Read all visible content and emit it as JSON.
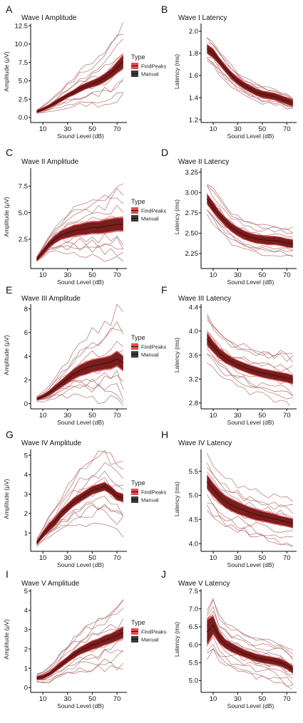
{
  "legend": {
    "title": "Type",
    "entries": [
      {
        "label": "FindPeaks",
        "color": "#f0484e"
      },
      {
        "label": "Manual",
        "color": "#3a3a3a"
      }
    ]
  },
  "colors": {
    "mean_line": "#5c0a0a",
    "manual_band": "#6b1a1a",
    "findpeaks_band": "#f0484e",
    "individual": "#a85a5a"
  },
  "chart_data": [
    {
      "panel": "A",
      "title": "Wave I Amplitude",
      "type": "line",
      "xlabel": "Sound Level (dB)",
      "ylabel": "Amplitude (μV)",
      "xlim": [
        3,
        78
      ],
      "xticks": [
        10,
        30,
        50,
        70
      ],
      "ylim": [
        -0.3,
        12.8
      ],
      "yticks": [
        0.0,
        2.5,
        5.0,
        7.5,
        10.0,
        12.5
      ],
      "ytick_labels": [
        "0.0",
        "2.5",
        "5.0",
        "7.5",
        "10.0",
        "12.5"
      ],
      "legend": true,
      "x": [
        5,
        10,
        15,
        20,
        25,
        30,
        35,
        40,
        45,
        50,
        55,
        60,
        65,
        70,
        75
      ],
      "mean": [
        0.8,
        1.1,
        1.5,
        2.0,
        2.5,
        3.0,
        3.4,
        3.9,
        4.3,
        4.6,
        4.9,
        5.4,
        6.0,
        6.8,
        7.6
      ],
      "band_halfwidth": [
        0.2,
        0.2,
        0.2,
        0.3,
        0.3,
        0.3,
        0.35,
        0.4,
        0.4,
        0.45,
        0.5,
        0.55,
        0.6,
        0.75,
        0.9
      ],
      "individual_spread": [
        0.2,
        0.4,
        0.6,
        0.9,
        1.2,
        1.5,
        1.8,
        2.1,
        2.4,
        2.7,
        3.0,
        3.3,
        3.6,
        4.0,
        4.4
      ]
    },
    {
      "panel": "B",
      "title": "Wave I Latency",
      "type": "line",
      "xlabel": "Sound Level (dB)",
      "ylabel": "Latency (ms)",
      "xlim": [
        3,
        78
      ],
      "xticks": [
        10,
        30,
        50,
        70
      ],
      "ylim": [
        1.2,
        2.07
      ],
      "yticks": [
        1.2,
        1.4,
        1.6,
        1.8,
        2.0
      ],
      "ytick_labels": [
        "1.2",
        "1.4",
        "1.6",
        "1.8",
        "2.0"
      ],
      "legend": false,
      "x": [
        5,
        10,
        15,
        20,
        25,
        30,
        35,
        40,
        45,
        50,
        55,
        60,
        65,
        70,
        75
      ],
      "mean": [
        1.84,
        1.8,
        1.73,
        1.66,
        1.6,
        1.55,
        1.51,
        1.48,
        1.45,
        1.43,
        1.42,
        1.41,
        1.39,
        1.37,
        1.35
      ],
      "band_halfwidth": [
        0.04,
        0.04,
        0.03,
        0.03,
        0.03,
        0.03,
        0.03,
        0.03,
        0.03,
        0.03,
        0.03,
        0.03,
        0.03,
        0.03,
        0.03
      ],
      "individual_spread": [
        0.12,
        0.12,
        0.11,
        0.1,
        0.09,
        0.09,
        0.08,
        0.08,
        0.08,
        0.08,
        0.07,
        0.07,
        0.06,
        0.06,
        0.05
      ]
    },
    {
      "panel": "C",
      "title": "Wave II Amplitude",
      "type": "line",
      "xlabel": "Sound Level (dB)",
      "ylabel": "Amplitude (μV)",
      "xlim": [
        3,
        78
      ],
      "xticks": [
        10,
        30,
        50,
        70
      ],
      "ylim": [
        0,
        9.2
      ],
      "yticks": [
        2.5,
        5.0,
        7.5
      ],
      "ytick_labels": [
        "2.5",
        "5.0",
        "7.5"
      ],
      "legend": true,
      "x": [
        5,
        10,
        15,
        20,
        25,
        30,
        35,
        40,
        45,
        50,
        55,
        60,
        65,
        70,
        75
      ],
      "mean": [
        0.6,
        1.3,
        2.0,
        2.5,
        2.9,
        3.1,
        3.3,
        3.4,
        3.5,
        3.6,
        3.6,
        3.7,
        3.8,
        3.9,
        3.9
      ],
      "band_halfwidth": [
        0.2,
        0.25,
        0.3,
        0.35,
        0.4,
        0.45,
        0.5,
        0.5,
        0.55,
        0.55,
        0.55,
        0.6,
        0.6,
        0.6,
        0.6
      ],
      "individual_spread": [
        0.2,
        0.5,
        0.8,
        1.1,
        1.4,
        1.7,
        2.0,
        2.2,
        2.4,
        2.6,
        2.8,
        3.0,
        3.2,
        3.5,
        3.8
      ]
    },
    {
      "panel": "D",
      "title": "Wave II Latency",
      "type": "line",
      "xlabel": "Sound Level (dB)",
      "ylabel": "Latency (ms)",
      "xlim": [
        3,
        78
      ],
      "xticks": [
        10,
        30,
        50,
        70
      ],
      "ylim": [
        2.1,
        3.3
      ],
      "yticks": [
        2.25,
        2.5,
        2.75,
        3.0,
        3.25
      ],
      "ytick_labels": [
        "2.25",
        "2.50",
        "2.75",
        "3.00",
        "3.25"
      ],
      "legend": false,
      "x": [
        5,
        10,
        15,
        20,
        25,
        30,
        35,
        40,
        45,
        50,
        55,
        60,
        65,
        70,
        75
      ],
      "mean": [
        2.92,
        2.82,
        2.72,
        2.64,
        2.57,
        2.52,
        2.48,
        2.45,
        2.43,
        2.42,
        2.41,
        2.41,
        2.4,
        2.38,
        2.37
      ],
      "band_halfwidth": [
        0.06,
        0.06,
        0.05,
        0.05,
        0.05,
        0.05,
        0.05,
        0.05,
        0.05,
        0.05,
        0.05,
        0.05,
        0.05,
        0.05,
        0.05
      ],
      "individual_spread": [
        0.2,
        0.2,
        0.2,
        0.19,
        0.18,
        0.18,
        0.17,
        0.17,
        0.17,
        0.17,
        0.17,
        0.17,
        0.17,
        0.17,
        0.17
      ]
    },
    {
      "panel": "E",
      "title": "Wave III Amplitude",
      "type": "line",
      "xlabel": "Sound Level (dB)",
      "ylabel": "Amplitude (μV)",
      "xlim": [
        3,
        78
      ],
      "xticks": [
        10,
        30,
        50,
        70
      ],
      "ylim": [
        -0.2,
        8.4
      ],
      "yticks": [
        0,
        2,
        4,
        6,
        8
      ],
      "ytick_labels": [
        "0",
        "2",
        "4",
        "6",
        "8"
      ],
      "legend": true,
      "x": [
        5,
        10,
        15,
        20,
        25,
        30,
        35,
        40,
        45,
        50,
        55,
        60,
        65,
        70,
        75
      ],
      "mean": [
        0.4,
        0.6,
        0.9,
        1.3,
        1.7,
        2.1,
        2.5,
        2.8,
        3.0,
        3.2,
        3.3,
        3.4,
        3.5,
        3.8,
        3.4
      ],
      "band_halfwidth": [
        0.1,
        0.15,
        0.2,
        0.25,
        0.3,
        0.35,
        0.4,
        0.45,
        0.5,
        0.5,
        0.5,
        0.5,
        0.55,
        0.6,
        0.6
      ],
      "individual_spread": [
        0.2,
        0.4,
        0.6,
        0.8,
        1.1,
        1.4,
        1.7,
        2.0,
        2.3,
        2.6,
        2.8,
        3.0,
        3.3,
        3.7,
        4.2
      ]
    },
    {
      "panel": "F",
      "title": "Wave III Latency",
      "type": "line",
      "xlabel": "Sound Level (dB)",
      "ylabel": "Latency (ms)",
      "xlim": [
        3,
        78
      ],
      "xticks": [
        10,
        30,
        50,
        70
      ],
      "ylim": [
        2.75,
        4.45
      ],
      "yticks": [
        2.8,
        3.2,
        3.6,
        4.0,
        4.4
      ],
      "ytick_labels": [
        "2.8",
        "3.2",
        "3.6",
        "4.0",
        "4.4"
      ],
      "legend": false,
      "x": [
        5,
        10,
        15,
        20,
        25,
        30,
        35,
        40,
        45,
        50,
        55,
        60,
        65,
        70,
        75
      ],
      "mean": [
        3.87,
        3.74,
        3.63,
        3.55,
        3.49,
        3.44,
        3.4,
        3.36,
        3.33,
        3.3,
        3.28,
        3.26,
        3.24,
        3.22,
        3.19
      ],
      "band_halfwidth": [
        0.1,
        0.09,
        0.08,
        0.08,
        0.07,
        0.07,
        0.07,
        0.07,
        0.07,
        0.07,
        0.07,
        0.07,
        0.07,
        0.07,
        0.07
      ],
      "individual_spread": [
        0.4,
        0.38,
        0.37,
        0.36,
        0.36,
        0.36,
        0.36,
        0.37,
        0.38,
        0.39,
        0.4,
        0.41,
        0.42,
        0.43,
        0.45
      ]
    },
    {
      "panel": "G",
      "title": "Wave IV Amplitude",
      "type": "line",
      "xlabel": "Sound Level (dB)",
      "ylabel": "Amplitude (μV)",
      "xlim": [
        3,
        78
      ],
      "xticks": [
        10,
        30,
        50,
        70
      ],
      "ylim": [
        0.2,
        5.3
      ],
      "yticks": [
        1,
        2,
        3,
        4,
        5
      ],
      "ytick_labels": [
        "1",
        "2",
        "3",
        "4",
        "5"
      ],
      "legend": true,
      "x": [
        5,
        10,
        15,
        20,
        25,
        30,
        35,
        40,
        45,
        50,
        55,
        60,
        65,
        70,
        75
      ],
      "mean": [
        0.5,
        0.9,
        1.3,
        1.6,
        2.0,
        2.3,
        2.6,
        2.8,
        3.0,
        3.2,
        3.3,
        3.4,
        3.2,
        2.9,
        2.8
      ],
      "band_halfwidth": [
        0.1,
        0.15,
        0.2,
        0.2,
        0.2,
        0.2,
        0.2,
        0.2,
        0.2,
        0.2,
        0.2,
        0.2,
        0.2,
        0.2,
        0.2
      ],
      "individual_spread": [
        0.2,
        0.3,
        0.5,
        0.7,
        0.9,
        1.1,
        1.3,
        1.5,
        1.6,
        1.7,
        1.8,
        1.8,
        1.8,
        1.8,
        1.8
      ]
    },
    {
      "panel": "H",
      "title": "Wave IV Latency",
      "type": "line",
      "xlabel": "Sound Level (dB)",
      "ylabel": "Latency (ms)",
      "xlim": [
        3,
        78
      ],
      "xticks": [
        10,
        30,
        50,
        70
      ],
      "ylim": [
        3.9,
        5.95
      ],
      "yticks": [
        4.0,
        4.5,
        5.0,
        5.5
      ],
      "ytick_labels": [
        "4.0",
        "4.5",
        "5.0",
        "5.5"
      ],
      "legend": false,
      "x": [
        5,
        10,
        15,
        20,
        25,
        30,
        35,
        40,
        45,
        50,
        55,
        60,
        65,
        70,
        75
      ],
      "mean": [
        5.28,
        5.12,
        4.98,
        4.87,
        4.8,
        4.74,
        4.69,
        4.64,
        4.6,
        4.57,
        4.54,
        4.51,
        4.48,
        4.45,
        4.42
      ],
      "band_halfwidth": [
        0.14,
        0.13,
        0.12,
        0.12,
        0.12,
        0.12,
        0.11,
        0.11,
        0.11,
        0.1,
        0.1,
        0.1,
        0.09,
        0.09,
        0.09
      ],
      "individual_spread": [
        0.55,
        0.52,
        0.5,
        0.48,
        0.47,
        0.46,
        0.45,
        0.45,
        0.45,
        0.45,
        0.45,
        0.45,
        0.45,
        0.45,
        0.45
      ]
    },
    {
      "panel": "I",
      "title": "Wave V Amplitude",
      "type": "line",
      "xlabel": "Sound Level (dB)",
      "ylabel": "Amplitude (μV)",
      "xlim": [
        3,
        78
      ],
      "xticks": [
        10,
        30,
        50,
        70
      ],
      "ylim": [
        -0.1,
        5.1
      ],
      "yticks": [
        0,
        1,
        2,
        3,
        4,
        5
      ],
      "ytick_labels": [
        "0",
        "1",
        "2",
        "3",
        "4",
        "5"
      ],
      "legend": true,
      "x": [
        5,
        10,
        15,
        20,
        25,
        30,
        35,
        40,
        45,
        50,
        55,
        60,
        65,
        70,
        75
      ],
      "mean": [
        0.5,
        0.55,
        0.7,
        0.95,
        1.2,
        1.45,
        1.7,
        1.9,
        2.05,
        2.2,
        2.3,
        2.45,
        2.55,
        2.7,
        2.85
      ],
      "band_halfwidth": [
        0.1,
        0.1,
        0.1,
        0.12,
        0.15,
        0.15,
        0.17,
        0.18,
        0.2,
        0.22,
        0.22,
        0.24,
        0.24,
        0.26,
        0.28
      ],
      "individual_spread": [
        0.2,
        0.3,
        0.4,
        0.5,
        0.7,
        0.8,
        1.0,
        1.1,
        1.2,
        1.3,
        1.4,
        1.5,
        1.6,
        1.7,
        1.8
      ]
    },
    {
      "panel": "J",
      "title": "Wave V Latency",
      "type": "line",
      "xlabel": "Sound Level (dB)",
      "ylabel": "Latency (ms)",
      "xlim": [
        3,
        78
      ],
      "xticks": [
        10,
        30,
        50,
        70
      ],
      "ylim": [
        4.75,
        7.55
      ],
      "yticks": [
        5.0,
        5.5,
        6.0,
        6.5,
        7.0,
        7.5
      ],
      "ytick_labels": [
        "5.0",
        "5.5",
        "6.0",
        "6.5",
        "7.0",
        "7.5"
      ],
      "legend": false,
      "x": [
        5,
        10,
        15,
        20,
        25,
        30,
        35,
        40,
        45,
        50,
        55,
        60,
        65,
        70,
        75
      ],
      "mean": [
        6.35,
        6.55,
        6.2,
        6.02,
        5.92,
        5.84,
        5.76,
        5.7,
        5.64,
        5.6,
        5.57,
        5.54,
        5.5,
        5.42,
        5.3
      ],
      "band_halfwidth": [
        0.35,
        0.25,
        0.15,
        0.12,
        0.12,
        0.11,
        0.1,
        0.1,
        0.1,
        0.1,
        0.1,
        0.1,
        0.1,
        0.1,
        0.1
      ],
      "individual_spread": [
        0.7,
        0.7,
        0.65,
        0.62,
        0.6,
        0.58,
        0.57,
        0.56,
        0.56,
        0.56,
        0.56,
        0.56,
        0.56,
        0.56,
        0.56
      ]
    }
  ]
}
